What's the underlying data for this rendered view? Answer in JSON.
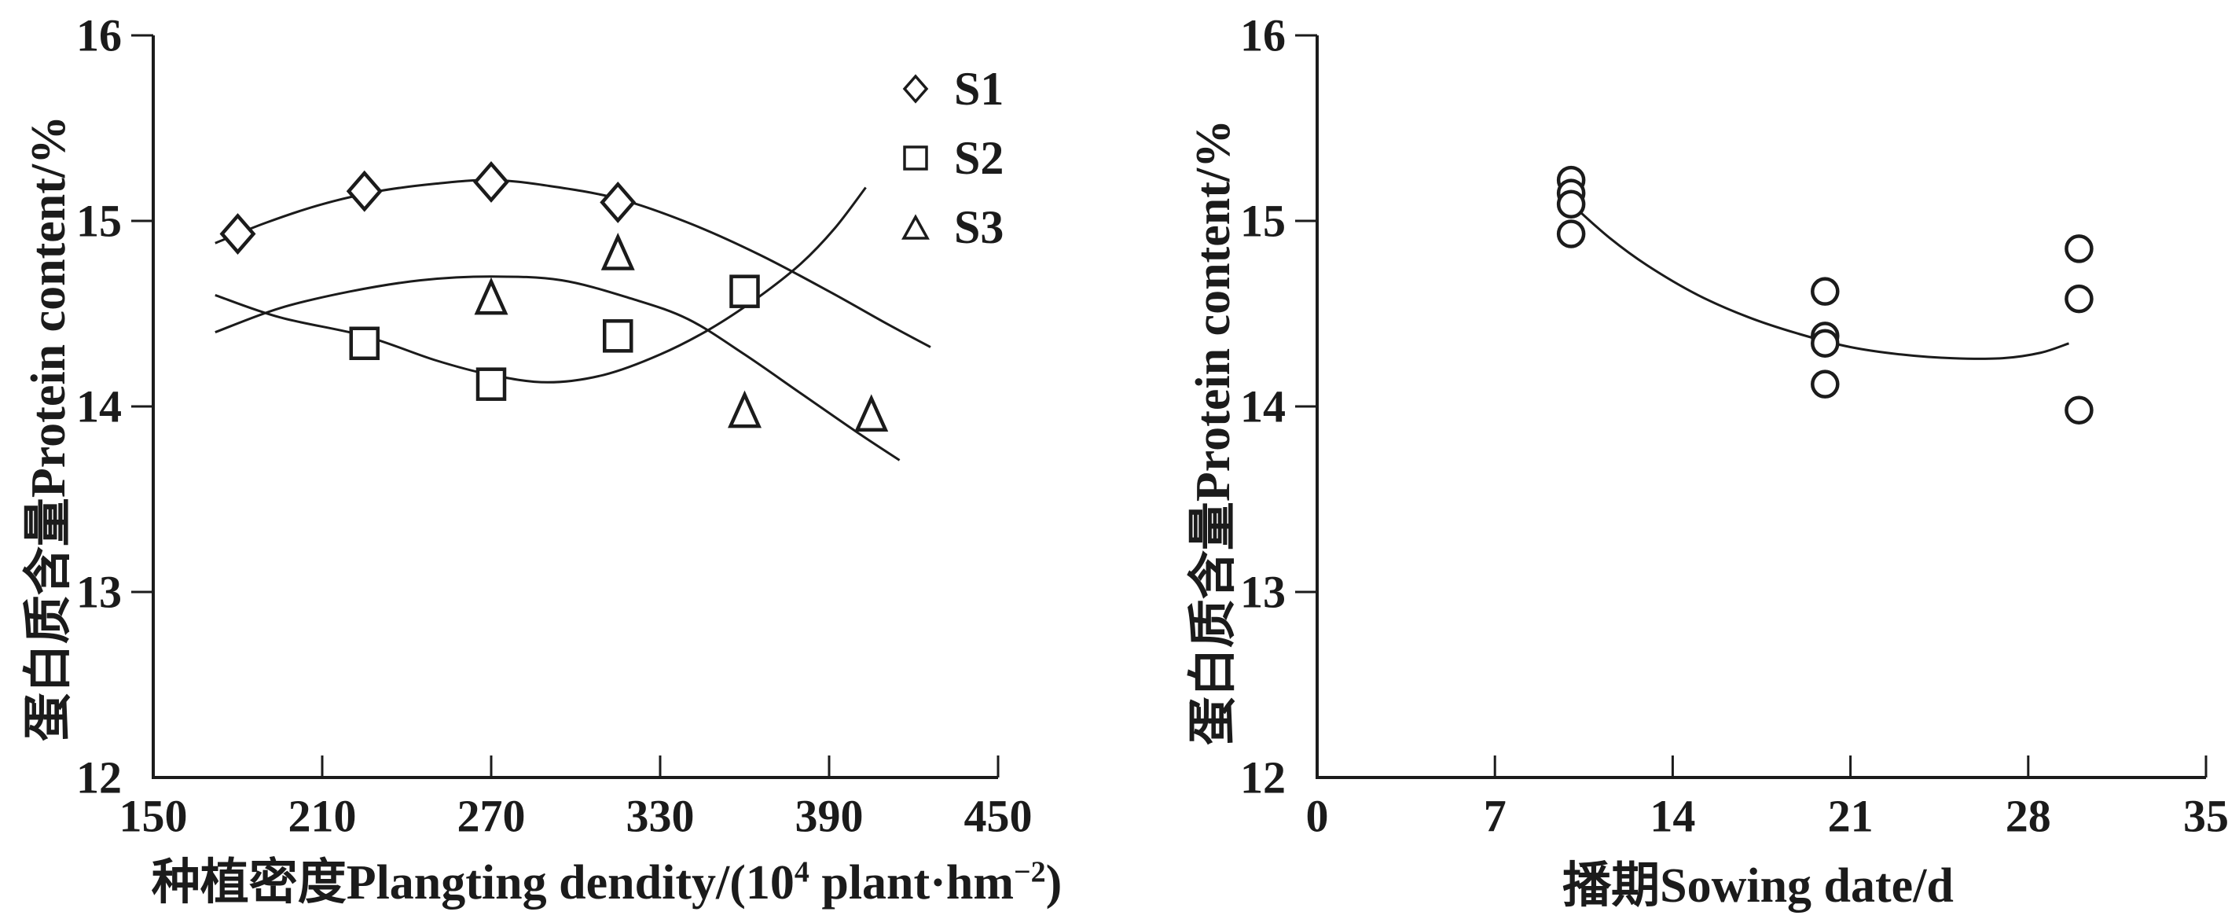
{
  "figure": {
    "background": "#ffffff",
    "ink_color": "#1b1b1b",
    "description_texts": {
      "left_y_title": "蛋白质含量Protein content/%",
      "right_y_title": "蛋白质含量Protein content/%",
      "left_x_title": "种植密度Plangting dendity/(10⁴ plant·hm⁻²)",
      "right_x_title": "播期Sowing date/d"
    }
  },
  "chart_data": [
    {
      "type": "scatter",
      "title": "",
      "ylabel": "蛋白质含量Protein content/%",
      "xlabel_parts": {
        "pre": "种植密度Plangting dendity/(10",
        "sup1": "4",
        "mid": " plant·hm",
        "sup2": "−2",
        "post": ")"
      },
      "xlim": [
        150,
        450
      ],
      "ylim": [
        12,
        16
      ],
      "xticks": [
        150,
        210,
        270,
        330,
        390,
        450
      ],
      "yticks": [
        12,
        13,
        14,
        15,
        16
      ],
      "grid": false,
      "legend_position": "top-right-inside",
      "series": [
        {
          "name": "S1",
          "marker": "diamond",
          "points": [
            [
              180,
              14.93
            ],
            [
              225,
              15.16
            ],
            [
              270,
              15.21
            ],
            [
              315,
              15.1
            ]
          ]
        },
        {
          "name": "S2",
          "marker": "square",
          "points": [
            [
              225,
              14.34
            ],
            [
              270,
              14.12
            ],
            [
              315,
              14.38
            ],
            [
              360,
              14.62
            ]
          ]
        },
        {
          "name": "S3",
          "marker": "triangle",
          "points": [
            [
              270,
              14.58
            ],
            [
              315,
              14.82
            ],
            [
              360,
              13.97
            ],
            [
              405,
              13.95
            ]
          ]
        }
      ],
      "fit_curves": [
        {
          "series": "S1",
          "points": [
            [
              172,
              14.88
            ],
            [
              190,
              14.99
            ],
            [
              210,
              15.09
            ],
            [
              230,
              15.16
            ],
            [
              250,
              15.2
            ],
            [
              270,
              15.22
            ],
            [
              290,
              15.19
            ],
            [
              315,
              15.12
            ],
            [
              340,
              14.99
            ],
            [
              365,
              14.82
            ],
            [
              390,
              14.62
            ],
            [
              410,
              14.45
            ],
            [
              426,
              14.32
            ]
          ]
        },
        {
          "series": "S2",
          "points": [
            [
              172,
              14.6
            ],
            [
              195,
              14.48
            ],
            [
              225,
              14.38
            ],
            [
              250,
              14.25
            ],
            [
              270,
              14.17
            ],
            [
              290,
              14.13
            ],
            [
              310,
              14.17
            ],
            [
              330,
              14.28
            ],
            [
              348,
              14.42
            ],
            [
              365,
              14.59
            ],
            [
              380,
              14.77
            ],
            [
              392,
              14.96
            ],
            [
              403,
              15.18
            ]
          ]
        },
        {
          "series": "S3",
          "points": [
            [
              172,
              14.4
            ],
            [
              195,
              14.53
            ],
            [
              220,
              14.62
            ],
            [
              245,
              14.68
            ],
            [
              270,
              14.7
            ],
            [
              295,
              14.68
            ],
            [
              320,
              14.58
            ],
            [
              340,
              14.47
            ],
            [
              360,
              14.28
            ],
            [
              380,
              14.07
            ],
            [
              400,
              13.86
            ],
            [
              415,
              13.71
            ]
          ]
        }
      ]
    },
    {
      "type": "scatter",
      "title": "",
      "ylabel": "蛋白质含量Protein content/%",
      "xlabel": "播期Sowing date/d",
      "xlim": [
        0,
        35
      ],
      "ylim": [
        12,
        16
      ],
      "xticks": [
        0,
        7,
        14,
        21,
        28,
        35
      ],
      "yticks": [
        12,
        13,
        14,
        15,
        16
      ],
      "grid": false,
      "series": [
        {
          "name": "Protein content",
          "marker": "circle",
          "points": [
            [
              10,
              15.22
            ],
            [
              10,
              15.15
            ],
            [
              10,
              15.09
            ],
            [
              10,
              14.93
            ],
            [
              20,
              14.62
            ],
            [
              20,
              14.38
            ],
            [
              20,
              14.34
            ],
            [
              20,
              14.12
            ],
            [
              30,
              14.85
            ],
            [
              30,
              14.58
            ],
            [
              30,
              13.98
            ]
          ]
        }
      ],
      "fit_curves": [
        {
          "series": "Protein content",
          "points": [
            [
              10.1,
              15.08
            ],
            [
              11.5,
              14.91
            ],
            [
              13,
              14.76
            ],
            [
              15,
              14.6
            ],
            [
              17,
              14.48
            ],
            [
              19,
              14.39
            ],
            [
              21,
              14.32
            ],
            [
              23,
              14.28
            ],
            [
              25,
              14.26
            ],
            [
              27,
              14.26
            ],
            [
              28.5,
              14.29
            ],
            [
              29.6,
              14.34
            ]
          ]
        }
      ]
    }
  ]
}
